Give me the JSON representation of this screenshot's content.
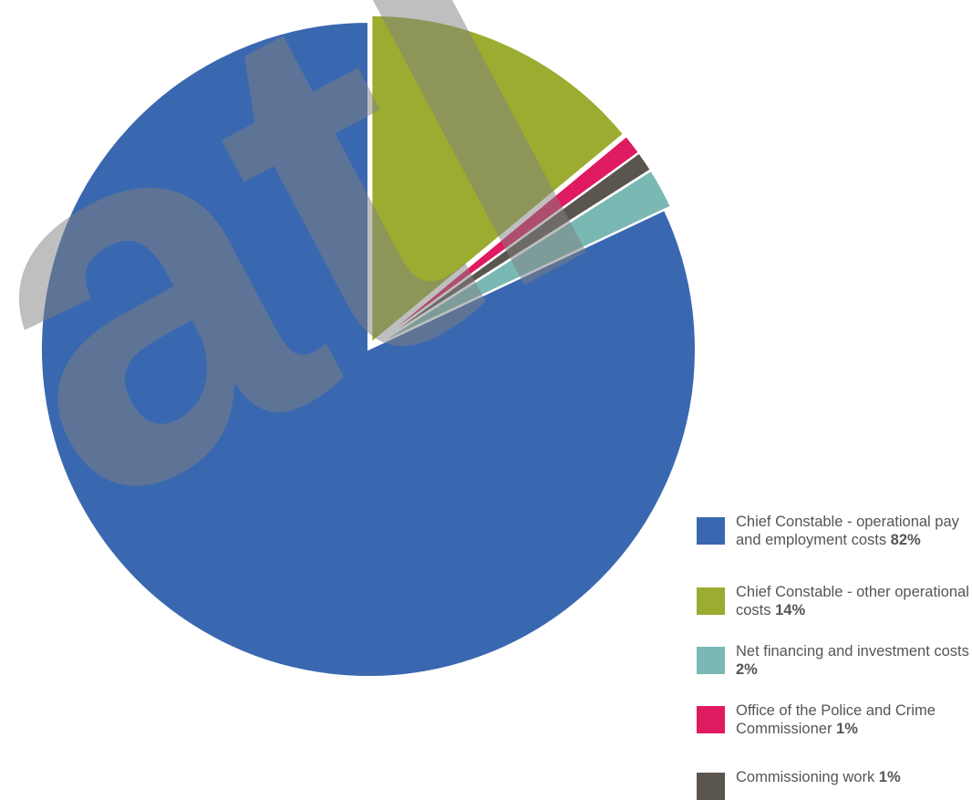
{
  "chart_data": {
    "type": "pie",
    "slices": [
      {
        "label_main": "Chief Constable - operational pay and employment costs",
        "value": 82,
        "value_label": "82%",
        "color": "#3a68b0"
      },
      {
        "label_main": "Chief Constable - other operational costs",
        "value": 14,
        "value_label": "14%",
        "color": "#9bac30"
      },
      {
        "label_main": "Office of the Police and Crime Commissioner",
        "value": 1,
        "value_label": "1%",
        "color": "#e01a60"
      },
      {
        "label_main": "Commissioning work",
        "value": 1,
        "value_label": "1%",
        "color": "#5b5550"
      },
      {
        "label_main": "Net financing and investment costs",
        "value": 2,
        "value_label": "2%",
        "color": "#7ab8b4"
      }
    ],
    "legend_order": [
      0,
      1,
      4,
      2,
      3
    ],
    "legend_placement": "bottom-right",
    "exploded_slices": [
      1,
      2,
      3,
      4
    ]
  },
  "watermark": {
    "text": "atl",
    "color": "#808080"
  }
}
